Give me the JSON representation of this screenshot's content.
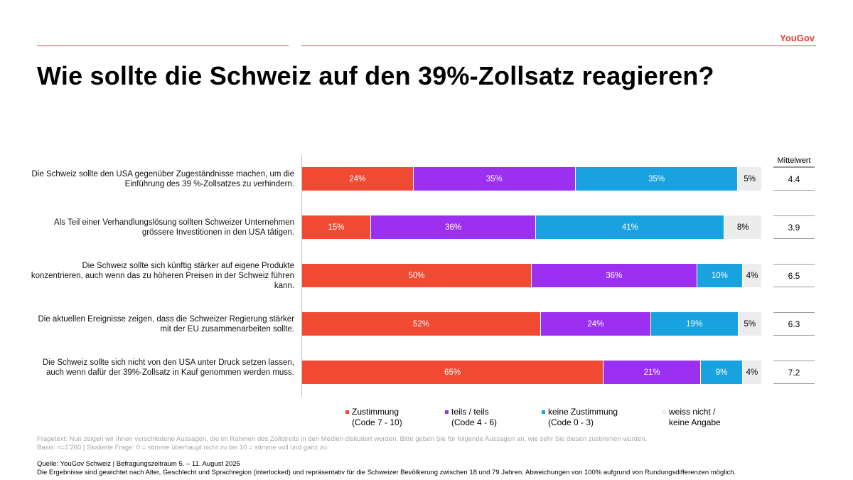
{
  "brand": "YouGov",
  "title": "Wie sollte die Schweiz auf den 39%-Zollsatz reagieren?",
  "mean_header": "Mittelwert",
  "colors": {
    "zustimmung": "#f04a33",
    "teils": "#9b30f0",
    "keine": "#19a2e0",
    "weiss": "#ececec",
    "accent": "#e3402e"
  },
  "legend": [
    {
      "line1": "Zustimmung",
      "line2": "(Code 7 - 10)",
      "color": "#f04a33"
    },
    {
      "line1": "teils / teils",
      "line2": "(Code 4 - 6)",
      "color": "#9b30f0"
    },
    {
      "line1": "keine Zustimmung",
      "line2": "(Code 0 - 3)",
      "color": "#19a2e0"
    },
    {
      "line1": "weiss nicht /",
      "line2": "keine Angabe",
      "color": "#ececec"
    }
  ],
  "chart_data": {
    "type": "bar",
    "orientation": "horizontal-stacked-100",
    "series": [
      {
        "name": "Zustimmung",
        "values": [
          24,
          15,
          50,
          52,
          65
        ]
      },
      {
        "name": "teils / teils",
        "values": [
          35,
          36,
          36,
          24,
          21
        ]
      },
      {
        "name": "keine Zustimmung",
        "values": [
          35,
          41,
          10,
          19,
          9
        ]
      },
      {
        "name": "weiss nicht / keine Angabe",
        "values": [
          5,
          8,
          4,
          5,
          4
        ]
      }
    ],
    "categories": [
      "Die Schweiz sollte den USA gegenüber Zugeständnisse machen, um die Einführung des 39 %-Zollsatzes zu verhindern.",
      "Als Teil einer Verhandlungslösung sollten Schweizer Unternehmen grössere Investitionen in den USA tätigen.",
      "Die Schweiz sollte sich künftig stärker auf eigene Produkte konzentrieren, auch wenn das zu höheren Preisen in der Schweiz führen kann.",
      "Die aktuellen Ereignisse zeigen, dass die Schweizer Regierung stärker mit der EU zusammenarbeiten sollte.",
      "Die Schweiz sollte sich nicht von den USA unter Druck setzen lassen, auch wenn dafür der 39%-Zollsatz in Kauf genommen werden muss."
    ],
    "means": [
      "4.4",
      "3.9",
      "6.5",
      "6.3",
      "7.2"
    ],
    "unit": "%"
  },
  "footnotes": {
    "fragetext": "Fragetext: Nun zeigen wir Ihnen verschiedene Aussagen, die im Rahmen des Zollstreits in den Medien diskutiert werden. Bitte geben Sie für folgende Aussagen an, wie sehr Sie diesen zustimmen würden.",
    "basis": "Basis: n=1'260 | Skalierte Frage: 0 = stimme überhaupt nicht zu bis 10 = stimme voll und ganz zu",
    "quelle": "Quelle: YouGov Schweiz | Befragungszeitraum 5. – 11. August 2025",
    "gewichtung": "Die Ergebnisse sind gewichtet nach Alter, Geschlecht und Sprachregion (interlocked) und repräsentativ für die Schweizer Bevölkerung zwischen 18 und 79 Jahren. Abweichungen von 100% aufgrund von Rundungsdifferenzen möglich."
  }
}
